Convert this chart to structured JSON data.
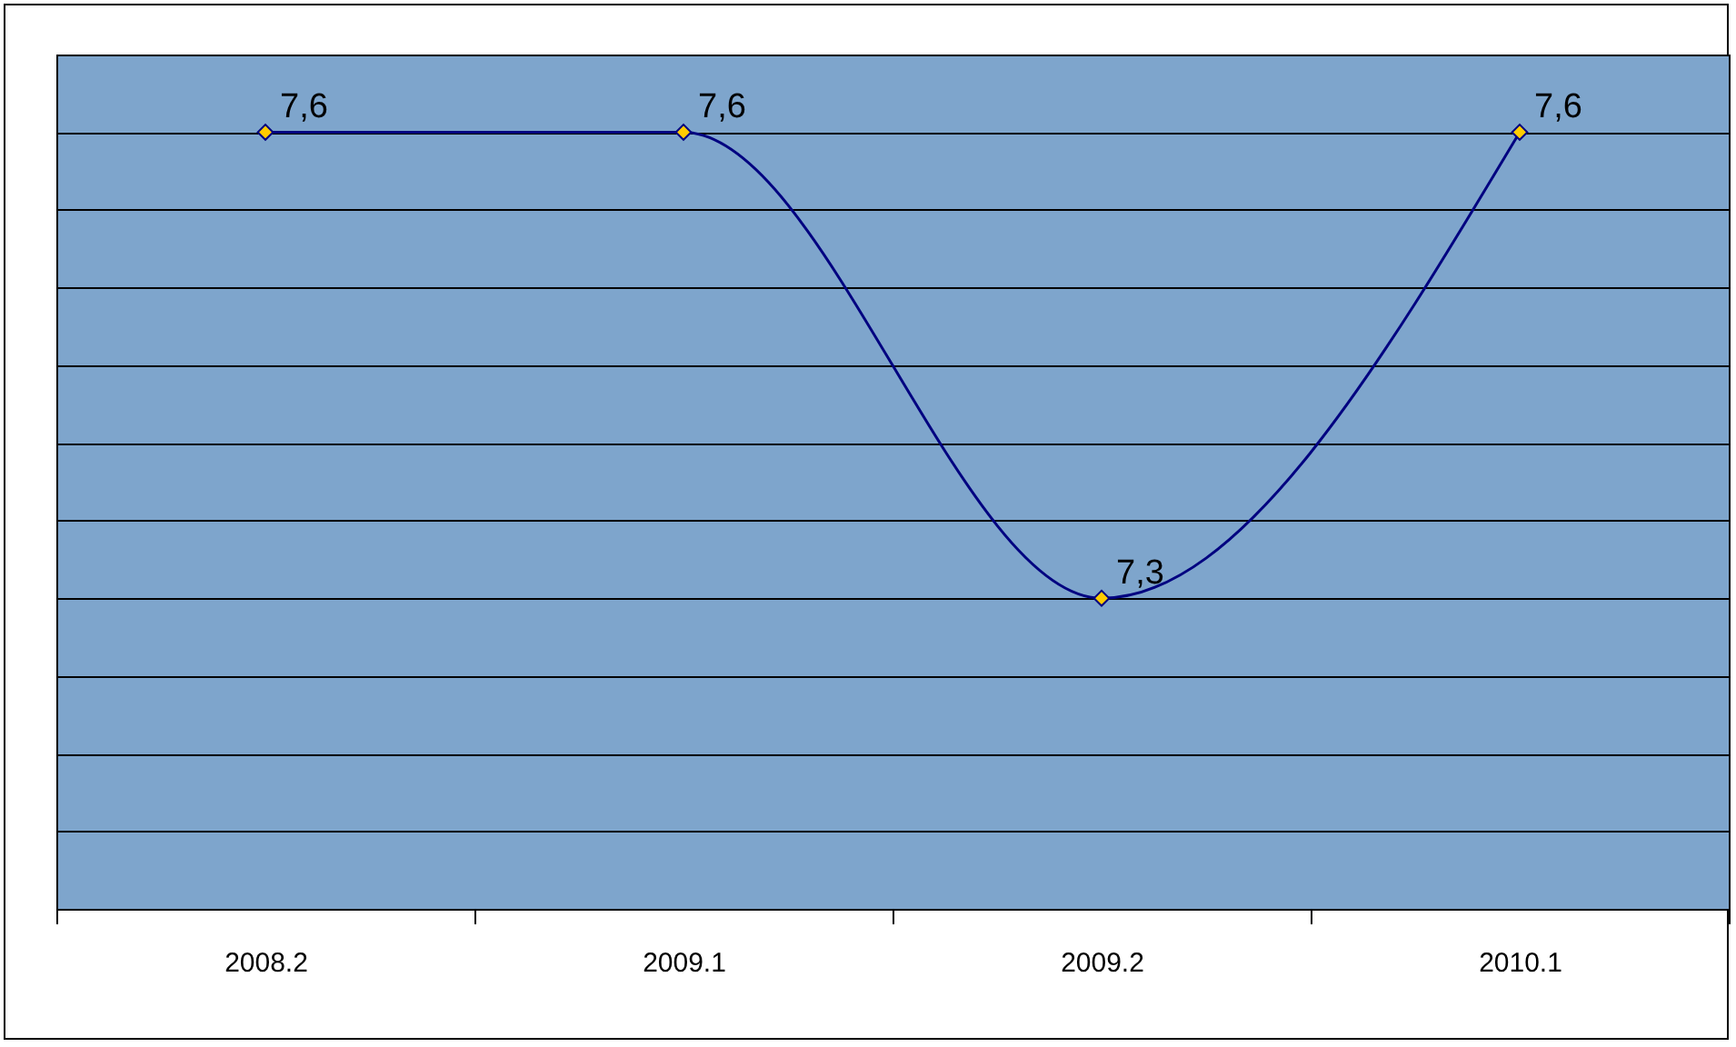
{
  "chart_data": {
    "type": "line",
    "categories": [
      "2008.2",
      "2009.1",
      "2009.2",
      "2010.1"
    ],
    "series": [
      {
        "color": "#000080",
        "values": [
          7.6,
          7.6,
          7.3,
          7.6
        ],
        "value_labels": [
          "7,6",
          "7,6",
          "7,3",
          "7,6"
        ]
      }
    ],
    "ylim": [
      7.1,
      7.65
    ],
    "yticks": [
      7.1,
      7.15,
      7.2,
      7.25,
      7.3,
      7.35,
      7.4,
      7.45,
      7.5,
      7.55,
      7.6,
      7.65
    ],
    "grid": "y",
    "tick_labels": "x",
    "marker": "diamond",
    "line_style": "solid"
  }
}
